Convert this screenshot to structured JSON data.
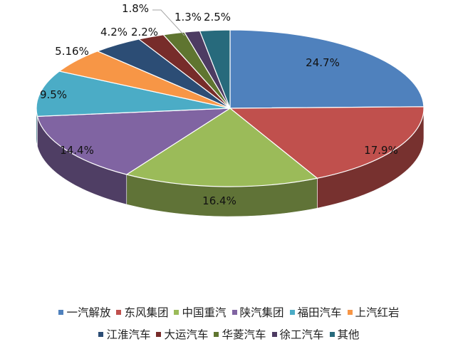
{
  "chart_data": {
    "type": "pie",
    "three_d": true,
    "start": "top, clockwise",
    "categories": [
      "一汽解放",
      "东风集团",
      "中国重汽",
      "陕汽集团",
      "福田汽车",
      "上汽红岩",
      "江淮汽车",
      "大运汽车",
      "华菱汽车",
      "徐工汽车",
      "其他"
    ],
    "values": [
      24.7,
      17.9,
      16.4,
      14.4,
      9.5,
      5.16,
      4.2,
      2.2,
      1.8,
      1.3,
      2.5
    ],
    "labels": [
      "24.7%",
      "17.9%",
      "16.4%",
      "14.4%",
      "9.5%",
      "5.16%",
      "4.2%",
      "2.2%",
      "1.8%",
      "1.3%",
      "2.5%"
    ],
    "colors": [
      "#4f81bd",
      "#c0504d",
      "#9bbb59",
      "#8064a2",
      "#4bacc6",
      "#f79646",
      "#2c4d75",
      "#772c2a",
      "#5f7530",
      "#4d3b62",
      "#276a7c"
    ],
    "legend_position": "bottom"
  }
}
